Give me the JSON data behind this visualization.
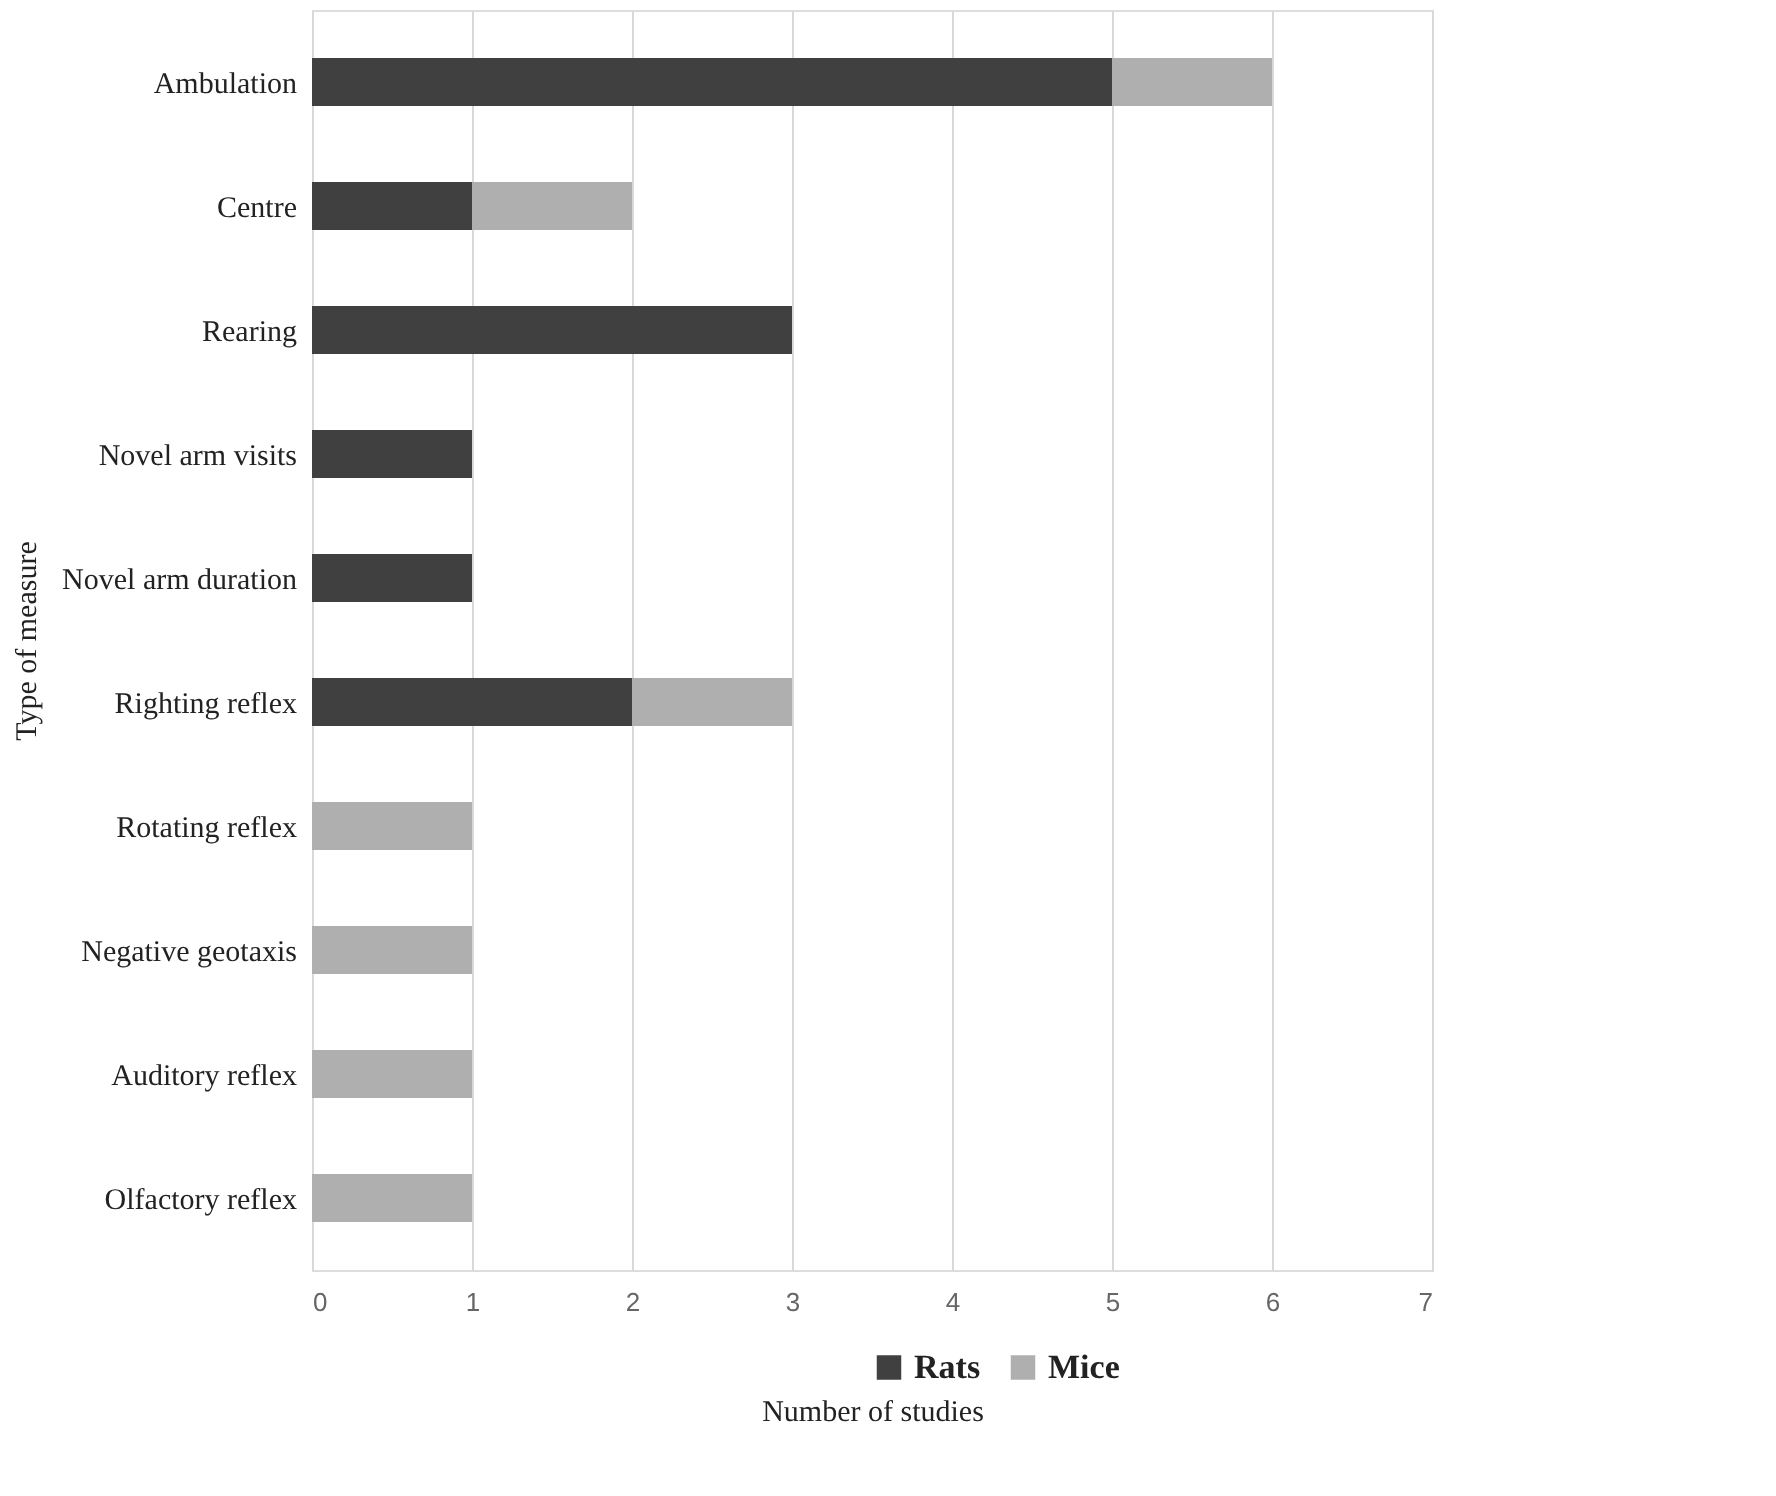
{
  "chart_data": {
    "type": "bar",
    "orientation": "horizontal",
    "stacked": true,
    "xlabel": "Number of studies",
    "ylabel": "Type of measure",
    "categories": [
      "Ambulation",
      "Centre",
      "Rearing",
      "Novel arm visits",
      "Novel arm duration",
      "Righting reflex",
      "Rotating reflex",
      "Negative geotaxis",
      "Auditory reflex",
      "Olfactory reflex"
    ],
    "series": [
      {
        "name": "Rats",
        "color": "#404040",
        "values": [
          5,
          1,
          3,
          1,
          1,
          2,
          0,
          0,
          0,
          0
        ]
      },
      {
        "name": "Mice",
        "color": "#afafaf",
        "values": [
          1,
          1,
          0,
          0,
          0,
          1,
          1,
          1,
          1,
          1
        ]
      }
    ],
    "xlim": [
      0,
      7
    ],
    "xticks": [
      0,
      1,
      2,
      3,
      4,
      5,
      6,
      7
    ],
    "grid": "x",
    "legend": "bottom"
  }
}
